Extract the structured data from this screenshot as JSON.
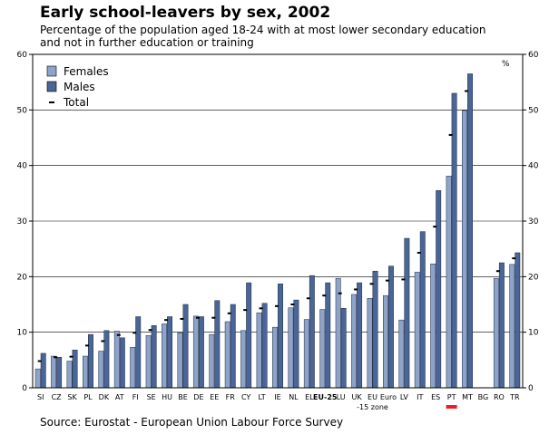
{
  "title": "Early school-leavers by sex, 2002",
  "subtitle_line1": "Percentage of the population aged 18-24 with at most lower secondary education",
  "subtitle_line2": "and not in further education or training",
  "source": "Source: Eurostat - European Union Labour Force Survey",
  "colors": {
    "females": "#8ea3c7",
    "males": "#4a6596",
    "total": "#000000",
    "highlight": "#ee1c24"
  },
  "chart_data": {
    "type": "bar",
    "title": "Early school-leavers by sex, 2002",
    "unit_label": "%",
    "ylim": [
      0,
      60
    ],
    "yticks": [
      0,
      10,
      20,
      30,
      40,
      50,
      60
    ],
    "legend": [
      "Females",
      "Males",
      "Total"
    ],
    "legend_position": "top-left",
    "highlight_category": "PT",
    "categories": [
      "SI",
      "CZ",
      "SK",
      "PL",
      "DK",
      "AT",
      "FI",
      "SE",
      "HU",
      "BE",
      "DE",
      "EE",
      "FR",
      "CY",
      "LT",
      "IE",
      "NL",
      "EL",
      "EU-25",
      "LU",
      "UK",
      "EU-15 zone",
      "Euro",
      "LV",
      "IT",
      "ES",
      "PT",
      "MT",
      "BG",
      "RO",
      "TR"
    ],
    "category_labels": [
      [
        "SI"
      ],
      [
        "CZ"
      ],
      [
        "SK"
      ],
      [
        "PL"
      ],
      [
        "DK"
      ],
      [
        "AT"
      ],
      [
        "FI"
      ],
      [
        "SE"
      ],
      [
        "HU"
      ],
      [
        "BE"
      ],
      [
        "DE"
      ],
      [
        "EE"
      ],
      [
        "FR"
      ],
      [
        "CY"
      ],
      [
        "LT"
      ],
      [
        "IE"
      ],
      [
        "NL"
      ],
      [
        "EL"
      ],
      [
        "EU-25"
      ],
      [
        "LU"
      ],
      [
        "UK"
      ],
      [
        "EU",
        "-15 zone"
      ],
      [
        "Euro"
      ],
      [
        "LV"
      ],
      [
        "IT"
      ],
      [
        "ES"
      ],
      [
        "PT"
      ],
      [
        "MT"
      ],
      [
        "BG"
      ],
      [
        "RO"
      ],
      [
        "TR"
      ]
    ],
    "series": [
      {
        "name": "Females",
        "values": [
          3.4,
          5.7,
          4.8,
          5.7,
          6.6,
          10.2,
          7.3,
          9.4,
          11.5,
          9.9,
          12.9,
          9.6,
          11.9,
          10.3,
          13.5,
          10.9,
          14.4,
          12.3,
          14.1,
          19.7,
          16.8,
          16.1,
          16.6,
          12.2,
          20.8,
          22.3,
          38.1,
          49.9,
          null,
          19.7,
          22.2
        ]
      },
      {
        "name": "Males",
        "values": [
          6.2,
          5.5,
          6.8,
          9.6,
          10.3,
          9.0,
          12.8,
          11.2,
          12.8,
          15.0,
          12.8,
          15.7,
          15.0,
          18.9,
          15.2,
          18.7,
          15.8,
          20.2,
          18.9,
          14.3,
          18.9,
          21.0,
          21.9,
          26.9,
          28.1,
          35.5,
          53.0,
          56.5,
          null,
          22.5,
          24.3
        ]
      },
      {
        "name": "Total",
        "values": [
          4.8,
          5.5,
          5.6,
          7.6,
          8.4,
          9.5,
          9.9,
          10.4,
          12.2,
          12.4,
          12.6,
          12.6,
          13.4,
          14.0,
          14.3,
          14.7,
          15.0,
          16.1,
          16.6,
          17.0,
          17.7,
          18.7,
          19.3,
          19.5,
          24.3,
          29.0,
          45.5,
          53.4,
          null,
          21.0,
          23.3
        ]
      }
    ]
  }
}
